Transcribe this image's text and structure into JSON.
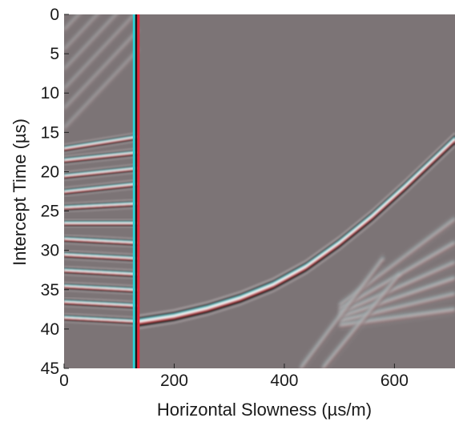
{
  "chart_data": {
    "type": "heatmap",
    "title": "",
    "xlabel": "Horizontal Slowness (µs/m)",
    "ylabel": "Intercept Time (µs)",
    "xlim": [
      0,
      710
    ],
    "ylim": [
      0,
      45
    ],
    "y_inverted": true,
    "x_ticks": [
      0,
      200,
      400,
      600
    ],
    "y_ticks": [
      0,
      5,
      10,
      15,
      20,
      25,
      30,
      35,
      40,
      45
    ],
    "grid": false,
    "colormap": "seismic wiggle (red-cyan-white-black on gray)",
    "background_color": "#7c7476",
    "features": {
      "vertical_line": {
        "x": 135,
        "y_range": [
          0,
          45
        ]
      },
      "dispersion_curve": {
        "x": [
          135,
          200,
          260,
          320,
          380,
          440,
          500,
          560,
          620,
          680,
          710
        ],
        "y": [
          39.0,
          38.3,
          37.3,
          36.0,
          34.3,
          32.0,
          29.0,
          25.6,
          21.8,
          17.8,
          15.8
        ]
      },
      "fan_lines_left": {
        "count": 12,
        "x_range": [
          0,
          135
        ],
        "y_at_x0": [
          17,
          18.5,
          20.5,
          22.5,
          24.5,
          26.5,
          28.5,
          30.5,
          32.5,
          34.5,
          36.5,
          38.5
        ],
        "y_at_x135": [
          15.5,
          17.5,
          19.5,
          21.5,
          24,
          26.5,
          29,
          31,
          33,
          35,
          37,
          39
        ]
      },
      "crossing_lines": [
        {
          "x": [
            430,
            580
          ],
          "y": [
            45,
            31
          ]
        },
        {
          "x": [
            470,
            610
          ],
          "y": [
            45,
            33
          ]
        }
      ],
      "fan_lines_right": {
        "x_range": [
          500,
          710
        ],
        "y_at_x500": [
          37,
          37.5,
          38,
          38.5,
          39,
          39.5
        ],
        "y_at_x710": [
          26,
          29,
          31.5,
          33.5,
          35.5,
          37.5
        ]
      }
    }
  }
}
